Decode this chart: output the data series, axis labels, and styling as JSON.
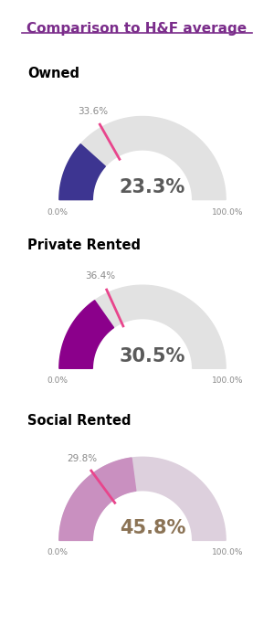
{
  "title": "Comparison to H&F average",
  "title_color": "#7B2D8B",
  "background_color": "#ffffff",
  "border_color": "#9B59B6",
  "charts": [
    {
      "label": "Owned",
      "value": 23.3,
      "benchmark": 33.6,
      "color": "#3D3591",
      "benchmark_color": "#E8458C",
      "bg_color": "#E2E2E2",
      "value_color": "#5A5A5A",
      "label_color": "#000000"
    },
    {
      "label": "Private Rented",
      "value": 30.5,
      "benchmark": 36.4,
      "color": "#8B008B",
      "benchmark_color": "#E8458C",
      "bg_color": "#E2E2E2",
      "value_color": "#5A5A5A",
      "label_color": "#000000"
    },
    {
      "label": "Social Rented",
      "value": 45.8,
      "benchmark": 29.8,
      "color": "#C990C0",
      "benchmark_color": "#E8458C",
      "bg_color": "#DDD0DD",
      "value_color": "#8B7355",
      "label_color": "#000000"
    }
  ]
}
